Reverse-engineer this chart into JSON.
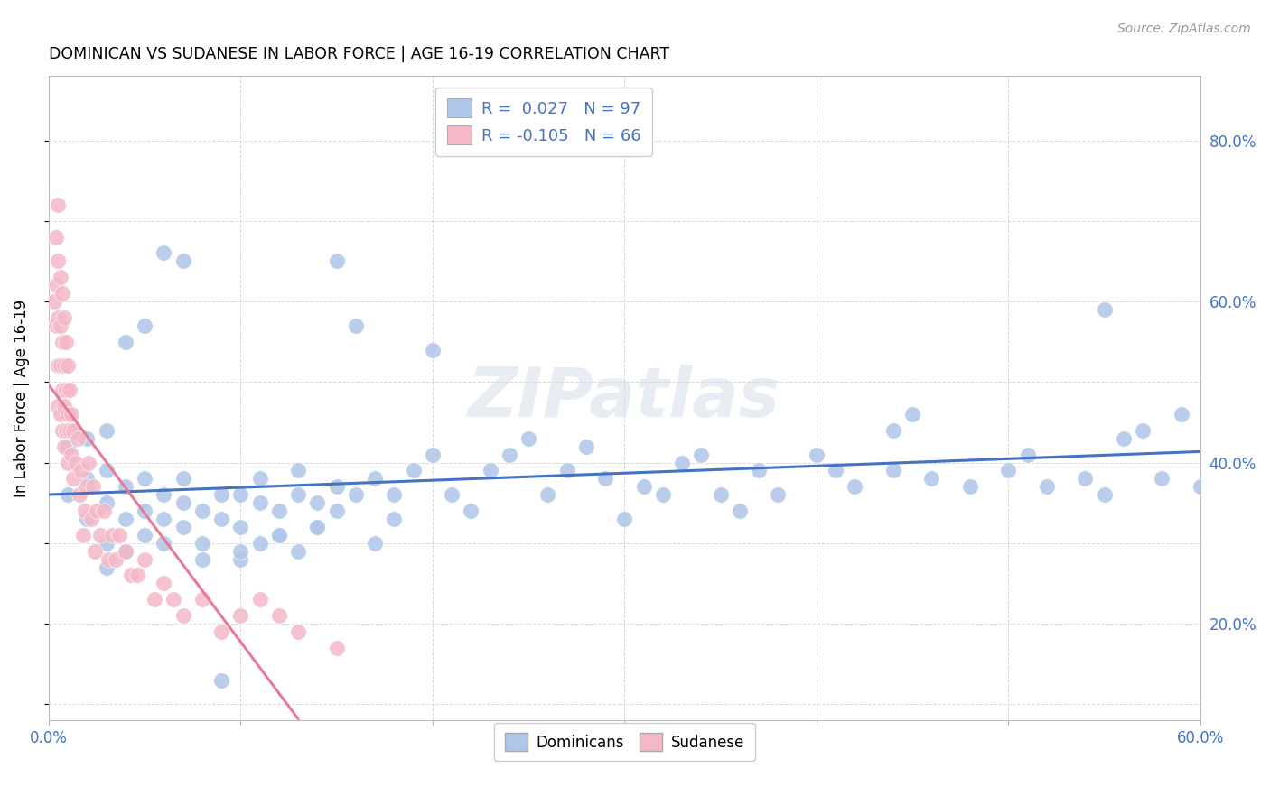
{
  "title": "DOMINICAN VS SUDANESE IN LABOR FORCE | AGE 16-19 CORRELATION CHART",
  "source": "Source: ZipAtlas.com",
  "ylabel_label": "In Labor Force | Age 16-19",
  "xlim": [
    0.0,
    0.6
  ],
  "ylim": [
    0.08,
    0.88
  ],
  "watermark": "ZIPatlas",
  "legend_labels": [
    "Dominicans",
    "Sudanese"
  ],
  "blue_color": "#aec6e8",
  "pink_color": "#f4b8c8",
  "blue_line_color": "#4472c4",
  "pink_line_color": "#e87a98",
  "dominican_x": [
    0.01,
    0.01,
    0.02,
    0.02,
    0.02,
    0.03,
    0.03,
    0.03,
    0.03,
    0.04,
    0.04,
    0.04,
    0.05,
    0.05,
    0.05,
    0.06,
    0.06,
    0.06,
    0.07,
    0.07,
    0.07,
    0.08,
    0.08,
    0.09,
    0.09,
    0.1,
    0.1,
    0.1,
    0.11,
    0.11,
    0.12,
    0.12,
    0.13,
    0.13,
    0.14,
    0.14,
    0.15,
    0.15,
    0.16,
    0.17,
    0.18,
    0.18,
    0.19,
    0.2,
    0.2,
    0.21,
    0.22,
    0.23,
    0.24,
    0.25,
    0.26,
    0.27,
    0.28,
    0.29,
    0.3,
    0.31,
    0.32,
    0.33,
    0.34,
    0.35,
    0.36,
    0.37,
    0.38,
    0.4,
    0.41,
    0.42,
    0.44,
    0.45,
    0.46,
    0.48,
    0.5,
    0.51,
    0.52,
    0.54,
    0.55,
    0.56,
    0.57,
    0.58,
    0.59,
    0.6,
    0.03,
    0.04,
    0.05,
    0.06,
    0.07,
    0.08,
    0.09,
    0.1,
    0.11,
    0.12,
    0.13,
    0.14,
    0.15,
    0.16,
    0.17,
    0.44,
    0.55
  ],
  "dominican_y": [
    0.36,
    0.42,
    0.33,
    0.38,
    0.43,
    0.3,
    0.35,
    0.39,
    0.44,
    0.29,
    0.33,
    0.37,
    0.31,
    0.34,
    0.38,
    0.3,
    0.33,
    0.36,
    0.32,
    0.35,
    0.38,
    0.3,
    0.34,
    0.33,
    0.36,
    0.28,
    0.32,
    0.36,
    0.35,
    0.38,
    0.31,
    0.34,
    0.36,
    0.39,
    0.32,
    0.35,
    0.34,
    0.37,
    0.36,
    0.38,
    0.33,
    0.36,
    0.39,
    0.54,
    0.41,
    0.36,
    0.34,
    0.39,
    0.41,
    0.43,
    0.36,
    0.39,
    0.42,
    0.38,
    0.33,
    0.37,
    0.36,
    0.4,
    0.41,
    0.36,
    0.34,
    0.39,
    0.36,
    0.41,
    0.39,
    0.37,
    0.44,
    0.46,
    0.38,
    0.37,
    0.39,
    0.41,
    0.37,
    0.38,
    0.36,
    0.43,
    0.44,
    0.38,
    0.46,
    0.37,
    0.27,
    0.55,
    0.57,
    0.66,
    0.65,
    0.28,
    0.13,
    0.29,
    0.3,
    0.31,
    0.29,
    0.32,
    0.65,
    0.57,
    0.3,
    0.39,
    0.59
  ],
  "sudanese_x": [
    0.003,
    0.004,
    0.004,
    0.004,
    0.005,
    0.005,
    0.005,
    0.005,
    0.005,
    0.006,
    0.006,
    0.006,
    0.006,
    0.007,
    0.007,
    0.007,
    0.007,
    0.008,
    0.008,
    0.008,
    0.008,
    0.009,
    0.009,
    0.009,
    0.01,
    0.01,
    0.01,
    0.011,
    0.011,
    0.012,
    0.012,
    0.013,
    0.013,
    0.014,
    0.015,
    0.016,
    0.017,
    0.018,
    0.019,
    0.02,
    0.021,
    0.022,
    0.023,
    0.024,
    0.025,
    0.027,
    0.029,
    0.031,
    0.033,
    0.035,
    0.037,
    0.04,
    0.043,
    0.046,
    0.05,
    0.055,
    0.06,
    0.065,
    0.07,
    0.08,
    0.09,
    0.1,
    0.11,
    0.12,
    0.13,
    0.15
  ],
  "sudanese_y": [
    0.6,
    0.68,
    0.62,
    0.57,
    0.72,
    0.65,
    0.58,
    0.52,
    0.47,
    0.63,
    0.57,
    0.52,
    0.46,
    0.61,
    0.55,
    0.49,
    0.44,
    0.58,
    0.52,
    0.47,
    0.42,
    0.55,
    0.49,
    0.44,
    0.52,
    0.46,
    0.4,
    0.49,
    0.44,
    0.46,
    0.41,
    0.44,
    0.38,
    0.4,
    0.43,
    0.36,
    0.39,
    0.31,
    0.34,
    0.37,
    0.4,
    0.33,
    0.37,
    0.29,
    0.34,
    0.31,
    0.34,
    0.28,
    0.31,
    0.28,
    0.31,
    0.29,
    0.26,
    0.26,
    0.28,
    0.23,
    0.25,
    0.23,
    0.21,
    0.23,
    0.19,
    0.21,
    0.23,
    0.21,
    0.19,
    0.17
  ],
  "yticks": [
    0.1,
    0.2,
    0.3,
    0.4,
    0.5,
    0.6,
    0.7,
    0.8
  ],
  "ytick_labels": [
    "",
    "20.0%",
    "",
    "40.0%",
    "",
    "60.0%",
    "",
    "80.0%"
  ],
  "xticks": [
    0.0,
    0.1,
    0.2,
    0.3,
    0.4,
    0.5,
    0.6
  ],
  "xtick_labels": [
    "0.0%",
    "",
    "",
    "",
    "",
    "",
    "60.0%"
  ]
}
